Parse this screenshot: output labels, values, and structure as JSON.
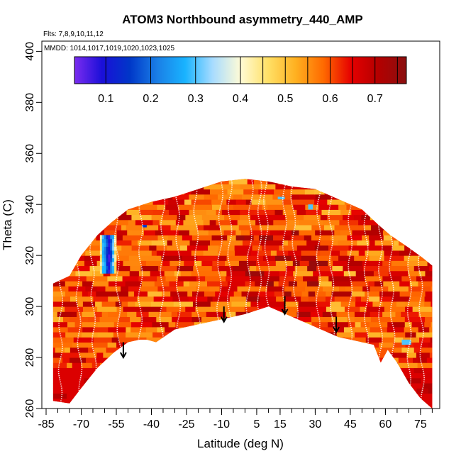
{
  "chart_data": {
    "type": "heatmap",
    "title": "ATOM3 Northbound asymmetry_440_AMP",
    "flights_note": "Flts: 7,8,9,10,11,12",
    "dates_note": "MMDD: 1014,1017,1019,1020,1023,1025",
    "xlabel": "Latitude (deg N)",
    "ylabel": "Theta (C)",
    "xlim": [
      -85,
      82
    ],
    "ylim": [
      260,
      404
    ],
    "x_ticks": [
      -85,
      -70,
      -55,
      -40,
      -25,
      -10,
      5,
      15,
      30,
      45,
      60,
      75
    ],
    "x_tick_labels": [
      "-85",
      "-70",
      "-55",
      "-40",
      "-25",
      "-10",
      "5",
      "15",
      "30",
      "45",
      "60",
      "75"
    ],
    "y_ticks": [
      260,
      280,
      300,
      320,
      340,
      360,
      380,
      400
    ],
    "y_tick_labels": [
      "260",
      "280",
      "300",
      "320",
      "340",
      "360",
      "380",
      "400"
    ],
    "colorbar": {
      "range": [
        0.03,
        0.77
      ],
      "ticks": [
        0.1,
        0.2,
        0.3,
        0.4,
        0.5,
        0.6,
        0.7
      ],
      "tick_labels": [
        "0.1",
        "0.2",
        "0.3",
        "0.4",
        "0.5",
        "0.6",
        "0.7"
      ],
      "colors": [
        "#7b2cf0",
        "#1a0fd8",
        "#0037c8",
        "#1a7fe6",
        "#19b3ff",
        "#a8dcff",
        "#fffbd6",
        "#ffe066",
        "#ffb020",
        "#ff6a00",
        "#e60000",
        "#b30000",
        "#8a1010"
      ]
    },
    "upper_envelope": [
      [
        -82,
        309
      ],
      [
        -75,
        312
      ],
      [
        -70,
        320
      ],
      [
        -63,
        328
      ],
      [
        -57,
        333
      ],
      [
        -50,
        338
      ],
      [
        -40,
        341
      ],
      [
        -30,
        343
      ],
      [
        -20,
        346
      ],
      [
        -10,
        349
      ],
      [
        0,
        350
      ],
      [
        10,
        349
      ],
      [
        20,
        347
      ],
      [
        30,
        346
      ],
      [
        40,
        342
      ],
      [
        50,
        338
      ],
      [
        57,
        332
      ],
      [
        62,
        328
      ],
      [
        70,
        323
      ],
      [
        76,
        319
      ],
      [
        80,
        316
      ]
    ],
    "lower_envelope": [
      [
        -82,
        263
      ],
      [
        -75,
        262
      ],
      [
        -70,
        268
      ],
      [
        -63,
        276
      ],
      [
        -56,
        282
      ],
      [
        -50,
        286
      ],
      [
        -45,
        287
      ],
      [
        -42,
        287
      ],
      [
        -38,
        286
      ],
      [
        -30,
        291
      ],
      [
        -20,
        293
      ],
      [
        -10,
        295
      ],
      [
        0,
        297
      ],
      [
        10,
        300
      ],
      [
        20,
        296
      ],
      [
        30,
        292
      ],
      [
        40,
        288
      ],
      [
        50,
        286
      ],
      [
        55,
        285
      ],
      [
        58,
        278
      ],
      [
        61,
        283
      ],
      [
        65,
        278
      ],
      [
        70,
        270
      ],
      [
        75,
        264
      ],
      [
        80,
        260
      ]
    ],
    "arrows": [
      {
        "lat": -52,
        "theta_top": 286,
        "theta_bottom": 280
      },
      {
        "lat": -9,
        "theta_top": 300,
        "theta_bottom": 294
      },
      {
        "lat": 17,
        "theta_top": 304,
        "theta_bottom": 297
      },
      {
        "lat": 39,
        "theta_top": 296,
        "theta_bottom": 290
      }
    ],
    "features": [
      {
        "label": "blue-patch",
        "lat_range": [
          -62,
          -55
        ],
        "theta_range": [
          313,
          328
        ],
        "value": 0.25
      },
      {
        "label": "small-blue-a",
        "lat_range": [
          -44,
          -42
        ],
        "theta_range": [
          331,
          332
        ],
        "value": 0.15
      },
      {
        "label": "small-blue-b",
        "lat_range": [
          14,
          17
        ],
        "theta_range": [
          342,
          343
        ],
        "value": 0.3
      },
      {
        "label": "small-blue-c",
        "lat_range": [
          27,
          29
        ],
        "theta_range": [
          338,
          340
        ],
        "value": 0.3
      },
      {
        "label": "small-blue-d",
        "lat_range": [
          67,
          71
        ],
        "theta_range": [
          285,
          287
        ],
        "value": 0.3
      }
    ]
  }
}
